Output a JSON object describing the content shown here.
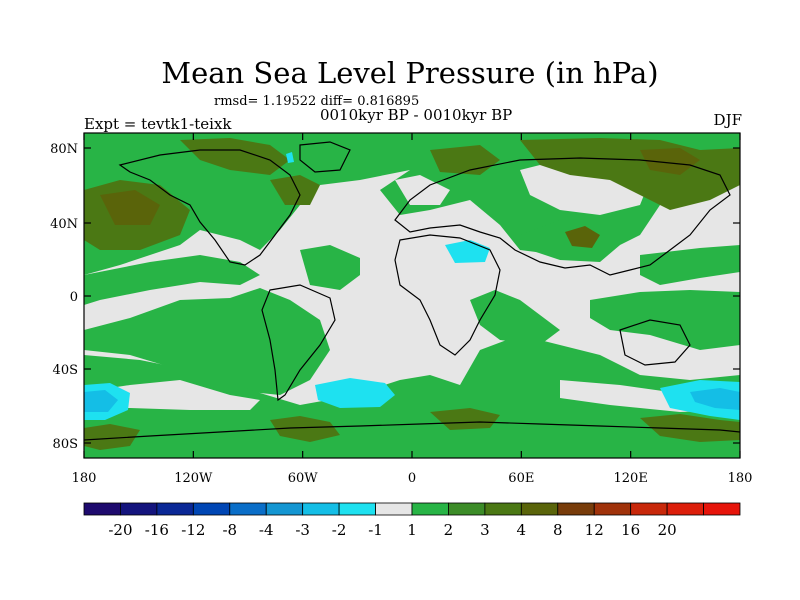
{
  "title": "Mean Sea Level Pressure (in hPa)",
  "stats": "rmsd= 1.19522 diff= 0.816895",
  "period": "0010kyr BP - 0010kyr BP",
  "experiment": "Expt = tevtk1-teixk",
  "season": "DJF",
  "map": {
    "lat_ticks": [
      "80N",
      "40N",
      "0",
      "40S",
      "80S"
    ],
    "lon_ticks": [
      "180",
      "120W",
      "60W",
      "0",
      "60E",
      "120E",
      "180"
    ]
  },
  "colorbar": {
    "colors": [
      "#1e0a6e",
      "#14147d",
      "#0a2896",
      "#0046b4",
      "#0a6ec8",
      "#1496d2",
      "#14bee6",
      "#1ee1f0",
      "#e6e6e6",
      "#28b446",
      "#3c8c28",
      "#4b7814",
      "#5a640a",
      "#783c0a",
      "#a0320a",
      "#c8280a",
      "#dc1e0a",
      "#e6140a"
    ],
    "labels": [
      "-20",
      "-16",
      "-12",
      "-8",
      "-4",
      "-3",
      "-2",
      "-1",
      "1",
      "2",
      "3",
      "4",
      "8",
      "12",
      "16",
      "20"
    ]
  },
  "palette": {
    "neutral": "#e6e6e6",
    "green_light": "#28b446",
    "green_dark": "#4b7814",
    "brown": "#5a640a",
    "cyan": "#14bee6",
    "cyan_light": "#1ee1f0"
  }
}
